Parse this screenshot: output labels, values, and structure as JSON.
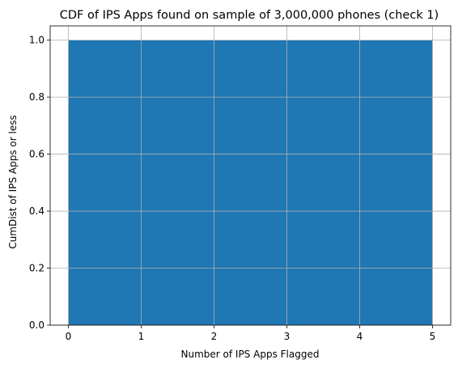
{
  "chart_data": {
    "type": "area",
    "title": "CDF of IPS Apps found on sample of 3,000,000 phones (check 1)",
    "xlabel": "Number of IPS Apps Flagged",
    "ylabel": "CumDist of IPS Apps or less",
    "xlim": [
      -0.25,
      5.25
    ],
    "ylim": [
      0,
      1.05
    ],
    "xticks": [
      0,
      1,
      2,
      3,
      4,
      5
    ],
    "xtick_labels": [
      "0",
      "1",
      "2",
      "3",
      "4",
      "5"
    ],
    "yticks": [
      0.0,
      0.2,
      0.4,
      0.6,
      0.8,
      1.0
    ],
    "ytick_labels": [
      "0.0",
      "0.2",
      "0.4",
      "0.6",
      "0.8",
      "1.0"
    ],
    "grid": true,
    "series": [
      {
        "x": [
          0,
          5
        ],
        "y": [
          1.0,
          1.0
        ],
        "color": "#1f77b4"
      }
    ]
  }
}
